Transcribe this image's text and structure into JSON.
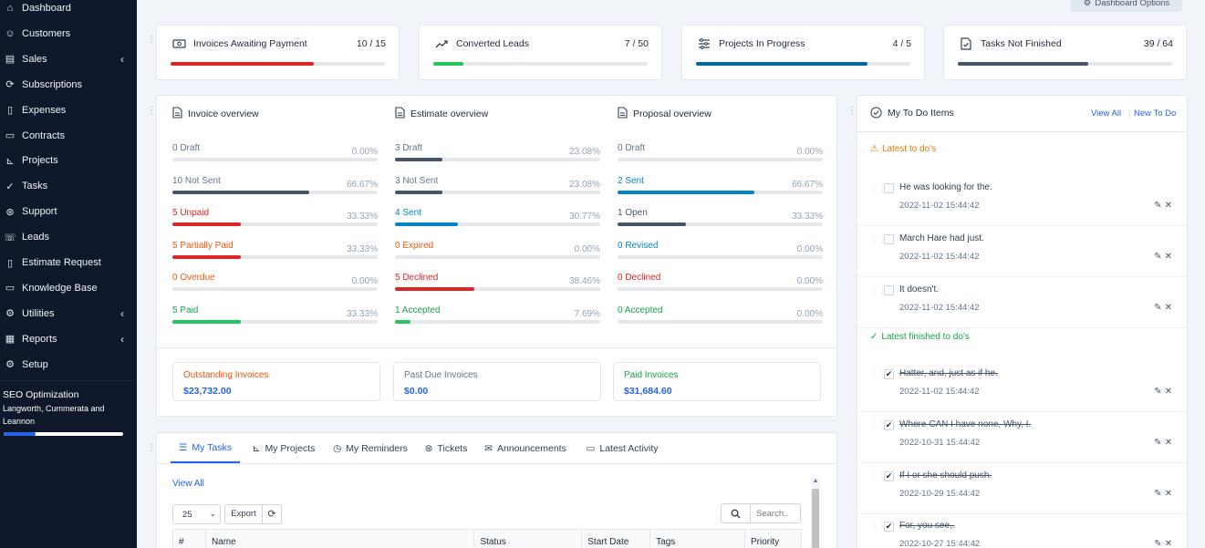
{
  "sidebar": {
    "items": [
      {
        "label": "Dashboard",
        "icon": "home-icon"
      },
      {
        "label": "Customers",
        "icon": "user-icon"
      },
      {
        "label": "Sales",
        "icon": "receipt-icon",
        "submenu": true
      },
      {
        "label": "Subscriptions",
        "icon": "refresh-icon"
      },
      {
        "label": "Expenses",
        "icon": "file-icon"
      },
      {
        "label": "Contracts",
        "icon": "contract-icon"
      },
      {
        "label": "Projects",
        "icon": "chart-icon"
      },
      {
        "label": "Tasks",
        "icon": "check-circle-icon"
      },
      {
        "label": "Support",
        "icon": "lifebuoy-icon"
      },
      {
        "label": "Leads",
        "icon": "tty-icon"
      },
      {
        "label": "Estimate Request",
        "icon": "file-alt-icon"
      },
      {
        "label": "Knowledge Base",
        "icon": "folder-icon"
      },
      {
        "label": "Utilities",
        "icon": "cogs-icon",
        "submenu": true
      },
      {
        "label": "Reports",
        "icon": "report-icon",
        "submenu": true
      },
      {
        "label": "Setup",
        "icon": "gear-icon"
      }
    ],
    "project": {
      "name": "SEO Optimization",
      "client": "Langworth, Cummerata and Leannon",
      "progress": 0.27
    }
  },
  "header": {
    "dashboard_options": "Dashboard Options"
  },
  "stats": [
    {
      "title": "Invoices Awaiting Payment",
      "value": "10 / 15",
      "progress": 0.667,
      "color": "#dc2626"
    },
    {
      "title": "Converted Leads",
      "value": "7 / 50",
      "progress": 0.14,
      "color": "#22c55e"
    },
    {
      "title": "Projects In Progress",
      "value": "4 / 5",
      "progress": 0.8,
      "color": "#0369a1"
    },
    {
      "title": "Tasks Not Finished",
      "value": "39 / 64",
      "progress": 0.609,
      "color": "#475569"
    }
  ],
  "overview": {
    "invoice": {
      "title": "Invoice overview",
      "rows": [
        {
          "label": "0 Draft",
          "pct": "0.00%",
          "color": "#64748b",
          "bar": "#475569",
          "value": 0
        },
        {
          "label": "10 Not Sent",
          "pct": "66.67%",
          "color": "#64748b",
          "bar": "#475569",
          "value": 66.67
        },
        {
          "label": "5 Unpaid",
          "pct": "33.33%",
          "color": "#dc2626",
          "bar": "#dc2626",
          "value": 33.33
        },
        {
          "label": "5 Partially Paid",
          "pct": "33.33%",
          "color": "#ea580c",
          "bar": "#dc2626",
          "value": 33.33
        },
        {
          "label": "0 Overdue",
          "pct": "0.00%",
          "color": "#ea580c",
          "bar": "#ea580c",
          "value": 0
        },
        {
          "label": "5 Paid",
          "pct": "33.33%",
          "color": "#16a34a",
          "bar": "#22c55e",
          "value": 33.33
        }
      ]
    },
    "estimate": {
      "title": "Estimate overview",
      "rows": [
        {
          "label": "3 Draft",
          "pct": "23.08%",
          "color": "#64748b",
          "bar": "#475569",
          "value": 23.08
        },
        {
          "label": "3 Not Sent",
          "pct": "23.08%",
          "color": "#64748b",
          "bar": "#475569",
          "value": 23.08
        },
        {
          "label": "4 Sent",
          "pct": "30.77%",
          "color": "#0284c7",
          "bar": "#0284c7",
          "value": 30.77
        },
        {
          "label": "0 Expired",
          "pct": "0.00%",
          "color": "#ea580c",
          "bar": "#ea580c",
          "value": 0
        },
        {
          "label": "5 Declined",
          "pct": "38.46%",
          "color": "#dc2626",
          "bar": "#dc2626",
          "value": 38.46
        },
        {
          "label": "1 Accepted",
          "pct": "7.69%",
          "color": "#16a34a",
          "bar": "#22c55e",
          "value": 7.69
        }
      ]
    },
    "proposal": {
      "title": "Proposal overview",
      "rows": [
        {
          "label": "0 Draft",
          "pct": "0.00%",
          "color": "#64748b",
          "bar": "#475569",
          "value": 0
        },
        {
          "label": "2 Sent",
          "pct": "66.67%",
          "color": "#0284c7",
          "bar": "#0284c7",
          "value": 66.67
        },
        {
          "label": "1 Open",
          "pct": "33.33%",
          "color": "#475569",
          "bar": "#475569",
          "value": 33.33
        },
        {
          "label": "0 Revised",
          "pct": "0.00%",
          "color": "#0284c7",
          "bar": "#0284c7",
          "value": 0
        },
        {
          "label": "0 Declined",
          "pct": "0.00%",
          "color": "#dc2626",
          "bar": "#dc2626",
          "value": 0
        },
        {
          "label": "0 Accepted",
          "pct": "0.00%",
          "color": "#16a34a",
          "bar": "#22c55e",
          "value": 0
        }
      ]
    }
  },
  "invoice_totals": [
    {
      "label": "Outstanding Invoices",
      "value": "$23,732.00",
      "color": "#ea580c"
    },
    {
      "label": "Past Due Invoices",
      "value": "$0.00",
      "color": "#64748b"
    },
    {
      "label": "Paid Invoices",
      "value": "$31,684.60",
      "color": "#16a34a"
    }
  ],
  "tabs": [
    {
      "label": "My Tasks",
      "icon": "tasks-icon",
      "active": true
    },
    {
      "label": "My Projects",
      "icon": "chart-icon"
    },
    {
      "label": "My Reminders",
      "icon": "clock-icon"
    },
    {
      "label": "Tickets",
      "icon": "lifebuoy-icon"
    },
    {
      "label": "Announcements",
      "icon": "bullhorn-icon"
    },
    {
      "label": "Latest Activity",
      "icon": "window-icon"
    }
  ],
  "tasks_panel": {
    "view_all": "View All",
    "page_size": "25",
    "export": "Export",
    "search_placeholder": "Search..",
    "columns": [
      "#",
      "Name",
      "Status",
      "Start Date",
      "Tags",
      "Priority"
    ]
  },
  "todo": {
    "title": "My To Do Items",
    "view_all": "View All",
    "new": "New To Do",
    "latest_label": "Latest to do's",
    "finished_label": "Latest finished to do's",
    "latest": [
      {
        "text": "He was looking for the.",
        "date": "2022-11-02 15:44:42"
      },
      {
        "text": "March Hare had just.",
        "date": "2022-11-02 15:44:42"
      },
      {
        "text": "It doesn't.",
        "date": "2022-11-02 15:44:42"
      }
    ],
    "finished": [
      {
        "text": "Hatter, and, just as if he.",
        "date": "2022-11-02 15:44:42"
      },
      {
        "text": "Where CAN I have none, Why, I.",
        "date": "2022-10-31 15:44:42"
      },
      {
        "text": "If I or she should push.",
        "date": "2022-10-29 15:44:42"
      },
      {
        "text": "For, you see,.",
        "date": "2022-10-27 15:44:42"
      }
    ]
  }
}
